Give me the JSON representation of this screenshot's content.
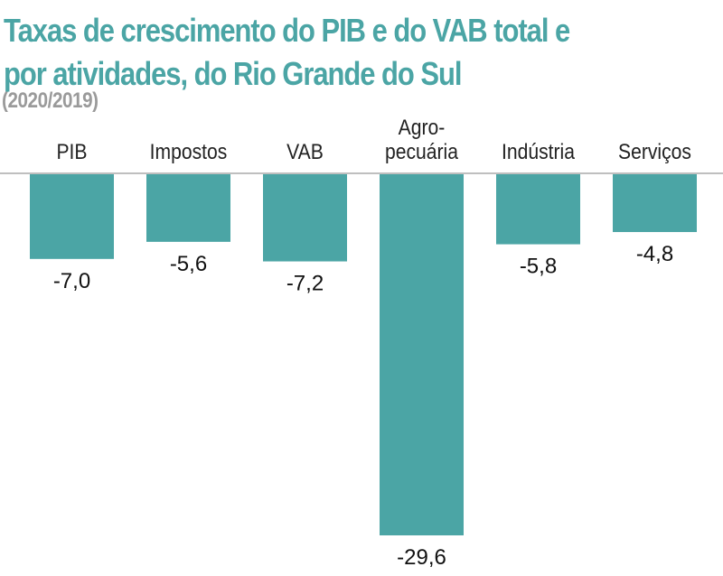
{
  "chart_data": {
    "type": "bar",
    "title": "Taxas de crescimento do PIB e do VAB total e por atividades, do Rio Grande do Sul",
    "title_lines": [
      "Taxas de crescimento do PIB e do VAB total e",
      "por atividades, do Rio Grande do Sul"
    ],
    "subtitle": "(2020/2019)",
    "categories": [
      "PIB",
      "Impostos",
      "VAB",
      "Agropecuária",
      "Indústria",
      "Serviços"
    ],
    "category_label_lines": [
      [
        "PIB"
      ],
      [
        "Impostos"
      ],
      [
        "VAB"
      ],
      [
        "Agro-",
        "pecuária"
      ],
      [
        "Indústria"
      ],
      [
        "Serviços"
      ]
    ],
    "values": [
      -7.0,
      -5.6,
      -7.2,
      -29.6,
      -5.8,
      -4.8
    ],
    "data_labels": [
      "-7,0",
      "-5,6",
      "-7,2",
      "-29,6",
      "-5,8",
      "-4,8"
    ],
    "xlabel": "",
    "ylabel": "",
    "ylim": [
      -29.6,
      0
    ],
    "grid": false,
    "bar_color": "#4ba5a5",
    "title_color": "#4ba5a5",
    "subtitle_color": "#9a9a9a"
  }
}
